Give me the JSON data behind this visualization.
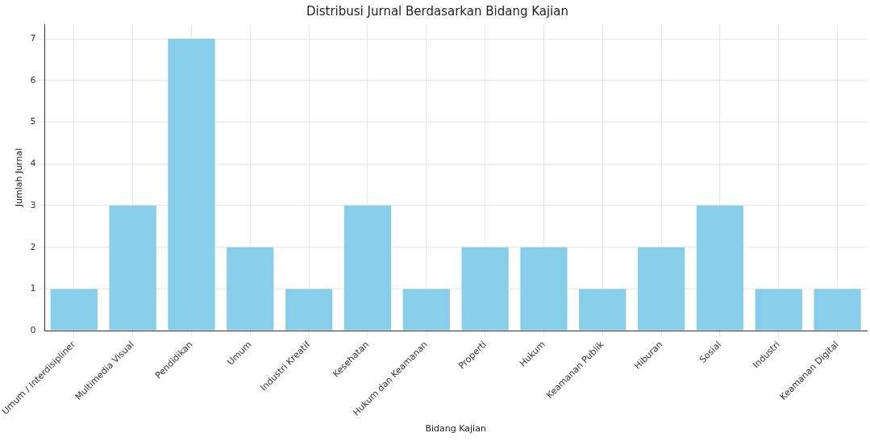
{
  "chart_data": {
    "type": "bar",
    "title": "Distribusi Jurnal Berdasarkan Bidang Kajian",
    "xlabel": "Bidang Kajian",
    "ylabel": "Jumlah Jurnal",
    "categories": [
      "Umum / Interdisipliner",
      "Multimedia Visual",
      "Pendidikan",
      "Umum",
      "Industri Kreatif",
      "Kesehatan",
      "Hukum dan Keamanan",
      "Properti",
      "Hukum",
      "Keamanan Publik",
      "Hiburan",
      "Sosial",
      "Industri",
      "Keamanan Digital"
    ],
    "values": [
      1,
      3,
      7,
      2,
      1,
      3,
      1,
      2,
      2,
      1,
      2,
      3,
      1,
      1
    ],
    "color": "#87ceeb",
    "ylim": [
      0,
      7.35
    ],
    "yticks": [
      0,
      1,
      2,
      3,
      4,
      5,
      6,
      7
    ],
    "grid": true,
    "legend": false
  }
}
